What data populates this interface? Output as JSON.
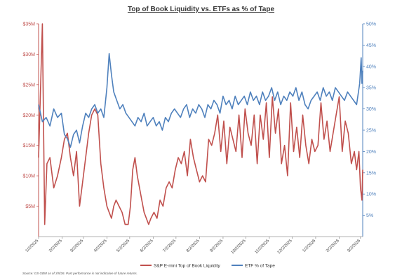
{
  "chart_data": {
    "type": "line",
    "title": "Top of Book Liquidity vs. ETFs as % of Tape",
    "source_note": "Source: GS GBM as of 3/5/26. Past performance is not indicative of future returns.",
    "x_tick_labels": [
      "1/2/2025",
      "2/2/2025",
      "3/2/2025",
      "4/2/2025",
      "5/2/2025",
      "6/2/2025",
      "7/2/2025",
      "8/2/2025",
      "9/2/2025",
      "10/2/2025",
      "11/2/2025",
      "12/2/2025",
      "1/2/2026",
      "2/2/2026",
      "3/2/2026"
    ],
    "xlim": [
      "2025-01-02",
      "2026-03-05"
    ],
    "y_left": {
      "ticks": [
        "$5M",
        "$10M",
        "$15M",
        "$20M",
        "$25M",
        "$30M",
        "$35M"
      ],
      "tick_values": [
        5,
        10,
        15,
        20,
        25,
        30,
        35
      ],
      "range": [
        0,
        35
      ],
      "unit": "$M",
      "color": "#c0504d"
    },
    "y_right": {
      "ticks": [
        "5%",
        "10%",
        "15%",
        "20%",
        "25%",
        "30%",
        "35%",
        "40%",
        "45%",
        "50%"
      ],
      "tick_values": [
        5,
        10,
        15,
        20,
        25,
        30,
        35,
        40,
        45,
        50
      ],
      "range": [
        0,
        50
      ],
      "unit": "%",
      "color": "#4f81bd"
    },
    "grid": false,
    "legend_position": "bottom",
    "series": [
      {
        "name": "S&P E-mini Top of Book Liquidity",
        "axis": "left",
        "color": "#c0504d",
        "points": [
          [
            "2025-01-02",
            13
          ],
          [
            "2025-01-07",
            35
          ],
          [
            "2025-01-10",
            2
          ],
          [
            "2025-01-13",
            12
          ],
          [
            "2025-01-17",
            13
          ],
          [
            "2025-01-22",
            8
          ],
          [
            "2025-01-27",
            10
          ],
          [
            "2025-02-01",
            13
          ],
          [
            "2025-02-05",
            16
          ],
          [
            "2025-02-09",
            17
          ],
          [
            "2025-02-13",
            13
          ],
          [
            "2025-02-17",
            10
          ],
          [
            "2025-02-21",
            14
          ],
          [
            "2025-02-25",
            5
          ],
          [
            "2025-03-01",
            9
          ],
          [
            "2025-03-05",
            13
          ],
          [
            "2025-03-09",
            17
          ],
          [
            "2025-03-13",
            20
          ],
          [
            "2025-03-17",
            21
          ],
          [
            "2025-03-21",
            20
          ],
          [
            "2025-03-25",
            12
          ],
          [
            "2025-03-29",
            8
          ],
          [
            "2025-04-02",
            5
          ],
          [
            "2025-04-05",
            4
          ],
          [
            "2025-04-08",
            3
          ],
          [
            "2025-04-11",
            5
          ],
          [
            "2025-04-14",
            6
          ],
          [
            "2025-04-18",
            5
          ],
          [
            "2025-04-22",
            4
          ],
          [
            "2025-04-26",
            2
          ],
          [
            "2025-04-30",
            2
          ],
          [
            "2025-05-03",
            5
          ],
          [
            "2025-05-06",
            11
          ],
          [
            "2025-05-09",
            13
          ],
          [
            "2025-05-12",
            10
          ],
          [
            "2025-05-15",
            8
          ],
          [
            "2025-05-18",
            6
          ],
          [
            "2025-05-21",
            4
          ],
          [
            "2025-05-24",
            3
          ],
          [
            "2025-05-27",
            2
          ],
          [
            "2025-05-30",
            3
          ],
          [
            "2025-06-03",
            4
          ],
          [
            "2025-06-07",
            3
          ],
          [
            "2025-06-11",
            6
          ],
          [
            "2025-06-15",
            5
          ],
          [
            "2025-06-19",
            8
          ],
          [
            "2025-06-23",
            9
          ],
          [
            "2025-06-27",
            8
          ],
          [
            "2025-07-01",
            11
          ],
          [
            "2025-07-05",
            13
          ],
          [
            "2025-07-09",
            12
          ],
          [
            "2025-07-13",
            14
          ],
          [
            "2025-07-17",
            10
          ],
          [
            "2025-07-21",
            16
          ],
          [
            "2025-07-25",
            13
          ],
          [
            "2025-07-29",
            11
          ],
          [
            "2025-08-02",
            9
          ],
          [
            "2025-08-06",
            10
          ],
          [
            "2025-08-10",
            9
          ],
          [
            "2025-08-14",
            16
          ],
          [
            "2025-08-18",
            15
          ],
          [
            "2025-08-22",
            17
          ],
          [
            "2025-08-26",
            20
          ],
          [
            "2025-08-30",
            14
          ],
          [
            "2025-09-03",
            19
          ],
          [
            "2025-09-07",
            12
          ],
          [
            "2025-09-11",
            18
          ],
          [
            "2025-09-15",
            16
          ],
          [
            "2025-09-19",
            14
          ],
          [
            "2025-09-23",
            20
          ],
          [
            "2025-09-27",
            13
          ],
          [
            "2025-10-01",
            21
          ],
          [
            "2025-10-05",
            17
          ],
          [
            "2025-10-09",
            15
          ],
          [
            "2025-10-13",
            20
          ],
          [
            "2025-10-17",
            12
          ],
          [
            "2025-10-21",
            20
          ],
          [
            "2025-10-25",
            16
          ],
          [
            "2025-10-29",
            22
          ],
          [
            "2025-11-02",
            13
          ],
          [
            "2025-11-06",
            23
          ],
          [
            "2025-11-10",
            17
          ],
          [
            "2025-11-14",
            21
          ],
          [
            "2025-11-18",
            12
          ],
          [
            "2025-11-22",
            15
          ],
          [
            "2025-11-26",
            10
          ],
          [
            "2025-11-30",
            22
          ],
          [
            "2025-12-04",
            14
          ],
          [
            "2025-12-08",
            18
          ],
          [
            "2025-12-12",
            13
          ],
          [
            "2025-12-16",
            20
          ],
          [
            "2025-12-20",
            15
          ],
          [
            "2025-12-24",
            12
          ],
          [
            "2025-12-28",
            16
          ],
          [
            "2026-01-01",
            14
          ],
          [
            "2026-01-05",
            15
          ],
          [
            "2026-01-09",
            22
          ],
          [
            "2026-01-13",
            16
          ],
          [
            "2026-01-17",
            19
          ],
          [
            "2026-01-21",
            14
          ],
          [
            "2026-01-25",
            17
          ],
          [
            "2026-01-29",
            20
          ],
          [
            "2026-02-02",
            23
          ],
          [
            "2026-02-06",
            14
          ],
          [
            "2026-02-10",
            19
          ],
          [
            "2026-02-14",
            17
          ],
          [
            "2026-02-18",
            12
          ],
          [
            "2026-02-22",
            14
          ],
          [
            "2026-02-25",
            11
          ],
          [
            "2026-02-28",
            14
          ],
          [
            "2026-03-02",
            8
          ],
          [
            "2026-03-04",
            6
          ],
          [
            "2026-03-05",
            11
          ]
        ]
      },
      {
        "name": "ETF % of Tape",
        "axis": "right",
        "color": "#4f81bd",
        "points": [
          [
            "2025-01-02",
            31
          ],
          [
            "2025-01-07",
            27
          ],
          [
            "2025-01-12",
            28
          ],
          [
            "2025-01-17",
            26
          ],
          [
            "2025-01-22",
            30
          ],
          [
            "2025-01-27",
            28
          ],
          [
            "2025-02-01",
            29
          ],
          [
            "2025-02-05",
            24
          ],
          [
            "2025-02-09",
            23
          ],
          [
            "2025-02-13",
            21
          ],
          [
            "2025-02-17",
            24
          ],
          [
            "2025-02-21",
            25
          ],
          [
            "2025-02-25",
            22
          ],
          [
            "2025-03-01",
            26
          ],
          [
            "2025-03-05",
            29
          ],
          [
            "2025-03-09",
            28
          ],
          [
            "2025-03-13",
            30
          ],
          [
            "2025-03-17",
            31
          ],
          [
            "2025-03-21",
            29
          ],
          [
            "2025-03-25",
            30
          ],
          [
            "2025-03-29",
            28
          ],
          [
            "2025-04-02",
            35
          ],
          [
            "2025-04-05",
            43
          ],
          [
            "2025-04-08",
            38
          ],
          [
            "2025-04-11",
            34
          ],
          [
            "2025-04-15",
            32
          ],
          [
            "2025-04-19",
            30
          ],
          [
            "2025-04-23",
            31
          ],
          [
            "2025-04-27",
            29
          ],
          [
            "2025-05-01",
            28
          ],
          [
            "2025-05-05",
            27
          ],
          [
            "2025-05-09",
            26
          ],
          [
            "2025-05-13",
            28
          ],
          [
            "2025-05-17",
            27
          ],
          [
            "2025-05-21",
            29
          ],
          [
            "2025-05-25",
            26
          ],
          [
            "2025-05-29",
            27
          ],
          [
            "2025-06-02",
            28
          ],
          [
            "2025-06-06",
            26
          ],
          [
            "2025-06-10",
            27
          ],
          [
            "2025-06-14",
            25
          ],
          [
            "2025-06-18",
            28
          ],
          [
            "2025-06-22",
            27
          ],
          [
            "2025-06-26",
            29
          ],
          [
            "2025-06-30",
            30
          ],
          [
            "2025-07-04",
            29
          ],
          [
            "2025-07-08",
            28
          ],
          [
            "2025-07-12",
            30
          ],
          [
            "2025-07-16",
            31
          ],
          [
            "2025-07-20",
            28
          ],
          [
            "2025-07-24",
            30
          ],
          [
            "2025-07-28",
            29
          ],
          [
            "2025-08-01",
            31
          ],
          [
            "2025-08-05",
            30
          ],
          [
            "2025-08-09",
            28
          ],
          [
            "2025-08-13",
            31
          ],
          [
            "2025-08-17",
            30
          ],
          [
            "2025-08-21",
            32
          ],
          [
            "2025-08-25",
            31
          ],
          [
            "2025-08-29",
            29
          ],
          [
            "2025-09-02",
            33
          ],
          [
            "2025-09-06",
            31
          ],
          [
            "2025-09-10",
            32
          ],
          [
            "2025-09-14",
            30
          ],
          [
            "2025-09-18",
            33
          ],
          [
            "2025-09-22",
            31
          ],
          [
            "2025-09-26",
            32
          ],
          [
            "2025-09-30",
            33
          ],
          [
            "2025-10-04",
            31
          ],
          [
            "2025-10-08",
            34
          ],
          [
            "2025-10-12",
            32
          ],
          [
            "2025-10-16",
            33
          ],
          [
            "2025-10-20",
            31
          ],
          [
            "2025-10-24",
            34
          ],
          [
            "2025-10-28",
            32
          ],
          [
            "2025-11-01",
            33
          ],
          [
            "2025-11-05",
            35
          ],
          [
            "2025-11-09",
            32
          ],
          [
            "2025-11-13",
            34
          ],
          [
            "2025-11-17",
            31
          ],
          [
            "2025-11-21",
            33
          ],
          [
            "2025-11-25",
            32
          ],
          [
            "2025-11-29",
            34
          ],
          [
            "2025-12-03",
            33
          ],
          [
            "2025-12-07",
            35
          ],
          [
            "2025-12-11",
            32
          ],
          [
            "2025-12-15",
            34
          ],
          [
            "2025-12-19",
            31
          ],
          [
            "2025-12-23",
            30
          ],
          [
            "2025-12-27",
            32
          ],
          [
            "2025-12-31",
            33
          ],
          [
            "2026-01-04",
            34
          ],
          [
            "2026-01-08",
            32
          ],
          [
            "2026-01-12",
            35
          ],
          [
            "2026-01-16",
            33
          ],
          [
            "2026-01-20",
            34
          ],
          [
            "2026-01-24",
            32
          ],
          [
            "2026-01-28",
            35
          ],
          [
            "2026-02-01",
            34
          ],
          [
            "2026-02-05",
            33
          ],
          [
            "2026-02-09",
            32
          ],
          [
            "2026-02-13",
            34
          ],
          [
            "2026-02-17",
            33
          ],
          [
            "2026-02-21",
            32
          ],
          [
            "2026-02-25",
            31
          ],
          [
            "2026-03-01",
            36
          ],
          [
            "2026-03-03",
            42
          ],
          [
            "2026-03-04",
            36
          ],
          [
            "2026-03-05",
            39
          ]
        ]
      }
    ]
  }
}
